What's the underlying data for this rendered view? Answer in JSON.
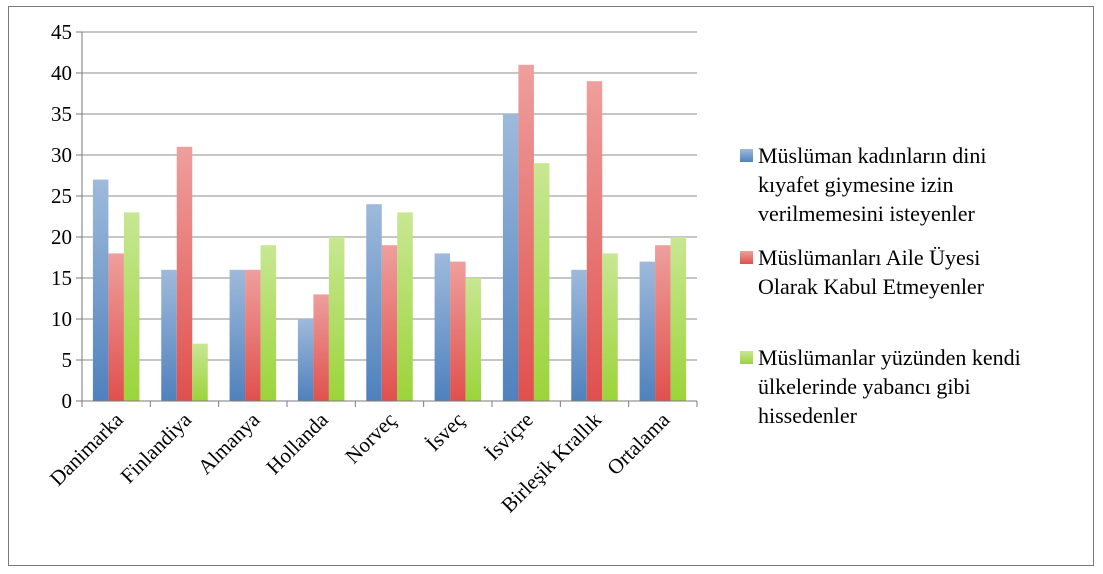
{
  "chart_data": {
    "type": "bar",
    "title": "",
    "xlabel": "",
    "ylabel": "",
    "ylim": [
      0,
      45
    ],
    "yticks": [
      0,
      5,
      10,
      15,
      20,
      25,
      30,
      35,
      40,
      45
    ],
    "grid": true,
    "legend_position": "right",
    "categories": [
      "Danimarka",
      "Finlandiya",
      "Almanya",
      "Hollanda",
      "Norveç",
      "İsveç",
      "İsviçre",
      "Birleşik Krallık",
      "Ortalama"
    ],
    "series": [
      {
        "name": "Müslüman kadınların dini kıyafet giymesine izin verilmemesini isteyenler",
        "legend_lines": [
          "Müslüman kadınların dini",
          "kıyafet giymesine izin",
          "verilmemesini isteyenler"
        ],
        "color": "#4f81bd",
        "values": [
          27,
          16,
          16,
          10,
          24,
          18,
          35,
          16,
          17
        ]
      },
      {
        "name": "Müslümanları Aile Üyesi Olarak Kabul Etmeyenler",
        "legend_lines": [
          "Müslümanları Aile Üyesi",
          "Olarak Kabul Etmeyenler"
        ],
        "color": "#e0504d",
        "values": [
          18,
          31,
          16,
          13,
          19,
          17,
          41,
          39,
          19
        ]
      },
      {
        "name": "Müslümanlar yüzünden kendi ülkelerinde yabancı gibi hissedenler",
        "legend_lines": [
          "Müslümanlar yüzünden kendi",
          "ülkelerinde yabancı gibi",
          "hissedenler"
        ],
        "color": "#9bd43a",
        "values": [
          23,
          7,
          19,
          20,
          23,
          15,
          29,
          18,
          20
        ]
      }
    ]
  }
}
